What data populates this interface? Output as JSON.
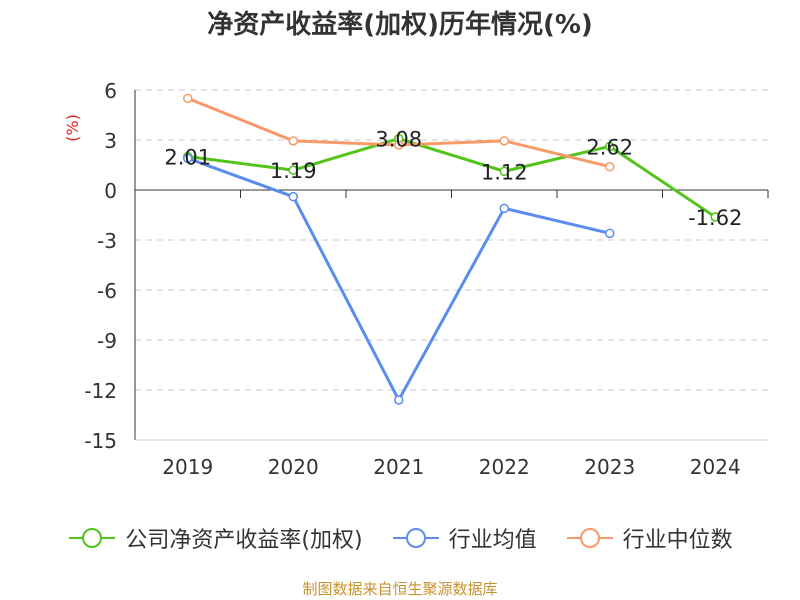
{
  "chart_data": {
    "type": "line",
    "title": "净资产收益率(加权)历年情况(%)",
    "ylabel": "(%)",
    "categories": [
      "2019",
      "2020",
      "2021",
      "2022",
      "2023",
      "2024"
    ],
    "ylim": [
      -15,
      6
    ],
    "yticks": [
      6,
      3,
      0,
      -3,
      -6,
      -9,
      -12,
      -15
    ],
    "ytick_labels": [
      "6",
      "3",
      "0",
      "-3",
      "-6",
      "-9",
      "-12",
      "-15"
    ],
    "grid": true,
    "series": [
      {
        "name": "公司净资产收益率(加权)",
        "color": "#52c41a",
        "values": [
          2.01,
          1.19,
          3.08,
          1.12,
          2.62,
          -1.62
        ],
        "labels": [
          "2.01",
          "1.19",
          "3.08",
          "1.12",
          "2.62",
          "-1.62"
        ]
      },
      {
        "name": "行业均值",
        "color": "#5b8def",
        "values": [
          1.9,
          -0.4,
          -12.6,
          -1.1,
          -2.6,
          null
        ]
      },
      {
        "name": "行业中位数",
        "color": "#f89a67",
        "values": [
          5.5,
          2.95,
          2.7,
          2.95,
          1.4,
          null
        ]
      }
    ]
  },
  "source": "制图数据来自恒生聚源数据库"
}
